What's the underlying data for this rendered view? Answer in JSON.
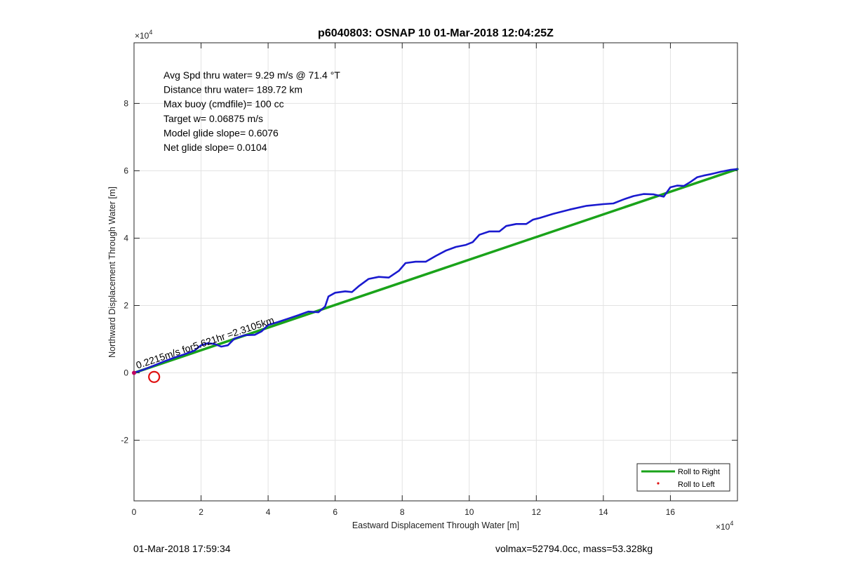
{
  "chart_data": {
    "type": "line",
    "title": "p6040803: OSNAP 10 01-Mar-2018 12:04:25Z",
    "xlabel": "Eastward Displacement Through Water [m]",
    "ylabel": "Northward Displacement Through Water [m]",
    "x_multiplier": "×10",
    "x_exponent": "4",
    "y_multiplier": "×10",
    "y_exponent": "4",
    "xlim": [
      0,
      180000
    ],
    "ylim": [
      -38000,
      98000
    ],
    "xticks": [
      0,
      20000,
      40000,
      60000,
      80000,
      100000,
      120000,
      140000,
      160000
    ],
    "xtick_labels": [
      "0",
      "2",
      "4",
      "6",
      "8",
      "10",
      "12",
      "14",
      "16"
    ],
    "yticks": [
      -20000,
      0,
      20000,
      40000,
      60000,
      80000
    ],
    "ytick_labels": [
      "-2",
      "0",
      "2",
      "4",
      "6",
      "8"
    ],
    "grid": true,
    "legend_position": "bottom-right",
    "series": [
      {
        "name": "Roll to Right",
        "color": "#1aa31a",
        "x": [
          0,
          180000
        ],
        "y": [
          0,
          60500
        ]
      },
      {
        "name": "Roll to Left",
        "color": "#e01010",
        "x": [],
        "y": []
      },
      {
        "color": "#1a1acf",
        "x": [
          0,
          3000,
          6000,
          9000,
          12000,
          15000,
          18000,
          20000,
          22000,
          24000,
          26000,
          28000,
          30000,
          33000,
          36000,
          38000,
          40000,
          43000,
          46000,
          49000,
          52000,
          55000,
          57000,
          58000,
          60000,
          63000,
          65000,
          67000,
          70000,
          73000,
          76000,
          79000,
          81000,
          84000,
          87000,
          90000,
          93000,
          96000,
          99000,
          101000,
          103000,
          106000,
          109000,
          111000,
          114000,
          117000,
          119000,
          121000,
          125000,
          130000,
          135000,
          140000,
          143000,
          146000,
          149000,
          152000,
          155000,
          158000,
          160000,
          162000,
          164000,
          166000,
          168000,
          170000,
          172000,
          175000,
          178000,
          180000
        ],
        "y": [
          0,
          1000,
          2200,
          3400,
          4500,
          5500,
          6600,
          8200,
          8800,
          8600,
          7800,
          8200,
          10200,
          11200,
          11300,
          12300,
          14200,
          15100,
          16100,
          17100,
          18200,
          18000,
          19700,
          22700,
          23800,
          24200,
          24000,
          25700,
          27900,
          28500,
          28300,
          30300,
          32600,
          33000,
          33000,
          34700,
          36300,
          37400,
          38000,
          38800,
          41000,
          42000,
          42000,
          43600,
          44200,
          44200,
          45500,
          46000,
          47200,
          48500,
          49600,
          50100,
          50300,
          51500,
          52500,
          53100,
          53000,
          52300,
          55100,
          55600,
          55500,
          56700,
          58100,
          58600,
          59000,
          59700,
          60300,
          60500
        ]
      }
    ],
    "current_position": {
      "x": 6000,
      "y": -1200,
      "color": "#e01010"
    },
    "track_label": "0.2215m/s for5.621hr =2.3105km",
    "annotations": [
      "Avg Spd thru water=  9.29 m/s @  71.4 °T",
      "Distance thru water= 189.72 km",
      "Max buoy (cmdfile)= 100 cc",
      "Target w= 0.06875 m/s",
      "Model glide slope= 0.6076",
      "Net glide slope= 0.0104"
    ]
  },
  "footer": {
    "timestamp": "01-Mar-2018 17:59:34",
    "vol_mass": "volmax=52794.0cc, mass=53.328kg"
  }
}
